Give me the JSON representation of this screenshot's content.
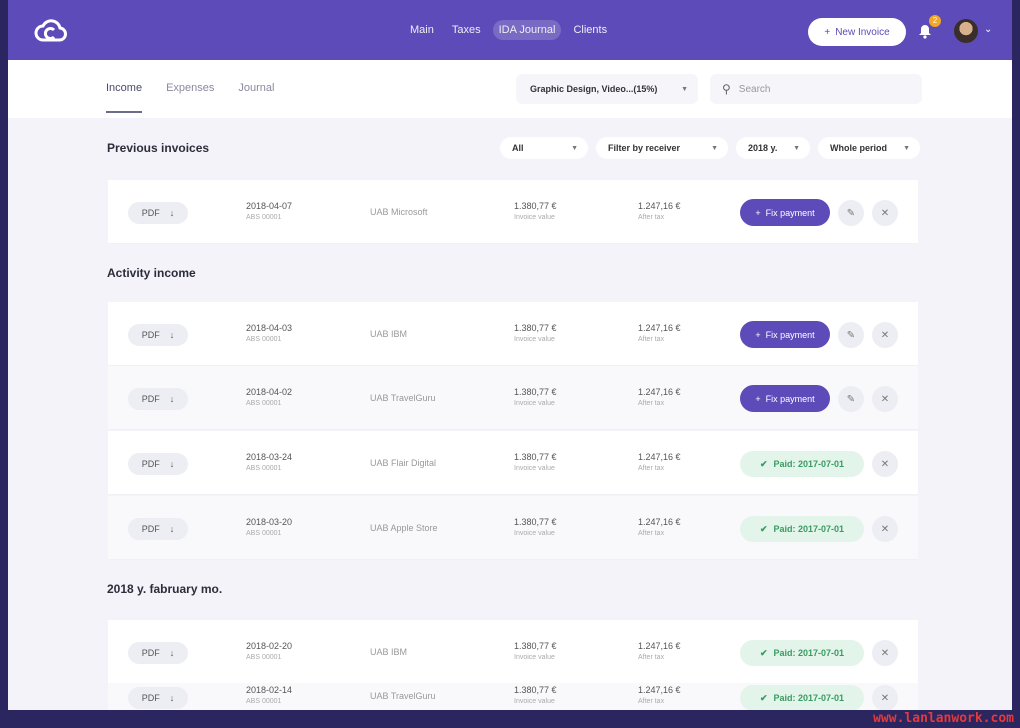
{
  "header": {
    "nav": [
      "Main",
      "Taxes",
      "IDA Journal",
      "Clients"
    ],
    "active_nav": "IDA Journal",
    "new_invoice": "New Invoice",
    "notifications": "2"
  },
  "subheader": {
    "tabs": [
      "Income",
      "Expenses",
      "Journal"
    ],
    "category": "Graphic Design, Video...(15%)",
    "search_placeholder": "Search"
  },
  "filters": [
    "All",
    "Filter by receiver",
    "2018 y.",
    "Whole period"
  ],
  "sections": [
    {
      "title": "Previous invoices",
      "rows": [
        {
          "date": "2018-04-07",
          "code": "ABS 00001",
          "client": "UAB Microsoft",
          "value": "1.380,77 €",
          "value_label": "Invoice value",
          "after": "1.247,16 €",
          "after_label": "After tax",
          "status": "fix"
        }
      ]
    },
    {
      "title": "Activity income",
      "rows": [
        {
          "date": "2018-04-03",
          "code": "ABS 00001",
          "client": "UAB IBM",
          "value": "1.380,77 €",
          "value_label": "Invoice value",
          "after": "1.247,16 €",
          "after_label": "After tax",
          "status": "fix"
        },
        {
          "date": "2018-04-02",
          "code": "ABS 00001",
          "client": "UAB TravelGuru",
          "value": "1.380,77 €",
          "value_label": "Invoice value",
          "after": "1.247,16 €",
          "after_label": "After tax",
          "status": "fix"
        },
        {
          "date": "2018-03-24",
          "code": "ABS 00001",
          "client": "UAB Flair Digital",
          "value": "1.380,77 €",
          "value_label": "Invoice value",
          "after": "1.247,16 €",
          "after_label": "After tax",
          "status": "paid"
        },
        {
          "date": "2018-03-20",
          "code": "ABS 00001",
          "client": "UAB Apple Store",
          "value": "1.380,77 €",
          "value_label": "Invoice value",
          "after": "1.247,16 €",
          "after_label": "After tax",
          "status": "paid"
        }
      ]
    },
    {
      "title": "2018 y. fabruary mo.",
      "rows": [
        {
          "date": "2018-02-20",
          "code": "ABS 00001",
          "client": "UAB IBM",
          "value": "1.380,77 €",
          "value_label": "Invoice value",
          "after": "1.247,16 €",
          "after_label": "After tax",
          "status": "paid"
        },
        {
          "date": "2018-02-14",
          "code": "ABS 00001",
          "client": "UAB TravelGuru",
          "value": "1.380,77 €",
          "value_label": "Invoice value",
          "after": "1.247,16 €",
          "after_label": "After tax",
          "status": "paid"
        }
      ]
    }
  ],
  "labels": {
    "pdf": "PDF",
    "fix_payment": "Fix payment",
    "paid": "Paid: 2017-07-01"
  },
  "colors": {
    "brand": "#5c4bb8",
    "paid_bg": "#e3f5ea",
    "paid_text": "#3b9a62"
  },
  "watermark": "www.lanlanwork.com"
}
